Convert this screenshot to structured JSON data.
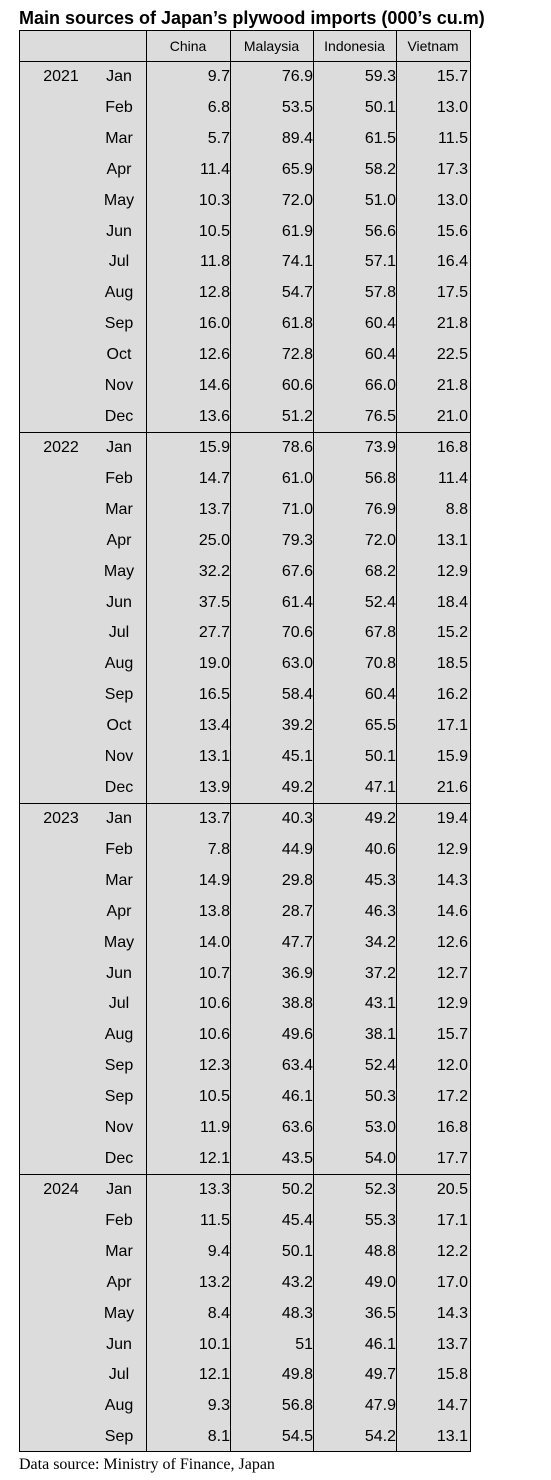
{
  "title": "Main sources of Japan’s plywood imports (000’s cu.m)",
  "columns": [
    "China",
    "Malaysia",
    "Indonesia",
    "Vietnam"
  ],
  "years": [
    {
      "year": "2021",
      "rows": [
        {
          "month": "Jan",
          "values": [
            "9.7",
            "76.9",
            "59.3",
            "15.7"
          ]
        },
        {
          "month": "Feb",
          "values": [
            "6.8",
            "53.5",
            "50.1",
            "13.0"
          ]
        },
        {
          "month": "Mar",
          "values": [
            "5.7",
            "89.4",
            "61.5",
            "11.5"
          ]
        },
        {
          "month": "Apr",
          "values": [
            "11.4",
            "65.9",
            "58.2",
            "17.3"
          ]
        },
        {
          "month": "May",
          "values": [
            "10.3",
            "72.0",
            "51.0",
            "13.0"
          ]
        },
        {
          "month": "Jun",
          "values": [
            "10.5",
            "61.9",
            "56.6",
            "15.6"
          ]
        },
        {
          "month": "Jul",
          "values": [
            "11.8",
            "74.1",
            "57.1",
            "16.4"
          ]
        },
        {
          "month": "Aug",
          "values": [
            "12.8",
            "54.7",
            "57.8",
            "17.5"
          ]
        },
        {
          "month": "Sep",
          "values": [
            "16.0",
            "61.8",
            "60.4",
            "21.8"
          ]
        },
        {
          "month": "Oct",
          "values": [
            "12.6",
            "72.8",
            "60.4",
            "22.5"
          ]
        },
        {
          "month": "Nov",
          "values": [
            "14.6",
            "60.6",
            "66.0",
            "21.8"
          ]
        },
        {
          "month": "Dec",
          "values": [
            "13.6",
            "51.2",
            "76.5",
            "21.0"
          ]
        }
      ]
    },
    {
      "year": "2022",
      "rows": [
        {
          "month": "Jan",
          "values": [
            "15.9",
            "78.6",
            "73.9",
            "16.8"
          ]
        },
        {
          "month": "Feb",
          "values": [
            "14.7",
            "61.0",
            "56.8",
            "11.4"
          ]
        },
        {
          "month": "Mar",
          "values": [
            "13.7",
            "71.0",
            "76.9",
            "8.8"
          ]
        },
        {
          "month": "Apr",
          "values": [
            "25.0",
            "79.3",
            "72.0",
            "13.1"
          ]
        },
        {
          "month": "May",
          "values": [
            "32.2",
            "67.6",
            "68.2",
            "12.9"
          ]
        },
        {
          "month": "Jun",
          "values": [
            "37.5",
            "61.4",
            "52.4",
            "18.4"
          ]
        },
        {
          "month": "Jul",
          "values": [
            "27.7",
            "70.6",
            "67.8",
            "15.2"
          ]
        },
        {
          "month": "Aug",
          "values": [
            "19.0",
            "63.0",
            "70.8",
            "18.5"
          ]
        },
        {
          "month": "Sep",
          "values": [
            "16.5",
            "58.4",
            "60.4",
            "16.2"
          ]
        },
        {
          "month": "Oct",
          "values": [
            "13.4",
            "39.2",
            "65.5",
            "17.1"
          ]
        },
        {
          "month": "Nov",
          "values": [
            "13.1",
            "45.1",
            "50.1",
            "15.9"
          ]
        },
        {
          "month": "Dec",
          "values": [
            "13.9",
            "49.2",
            "47.1",
            "21.6"
          ]
        }
      ]
    },
    {
      "year": "2023",
      "rows": [
        {
          "month": "Jan",
          "values": [
            "13.7",
            "40.3",
            "49.2",
            "19.4"
          ]
        },
        {
          "month": "Feb",
          "values": [
            "7.8",
            "44.9",
            "40.6",
            "12.9"
          ]
        },
        {
          "month": "Mar",
          "values": [
            "14.9",
            "29.8",
            "45.3",
            "14.3"
          ]
        },
        {
          "month": "Apr",
          "values": [
            "13.8",
            "28.7",
            "46.3",
            "14.6"
          ]
        },
        {
          "month": "May",
          "values": [
            "14.0",
            "47.7",
            "34.2",
            "12.6"
          ]
        },
        {
          "month": "Jun",
          "values": [
            "10.7",
            "36.9",
            "37.2",
            "12.7"
          ]
        },
        {
          "month": "Jul",
          "values": [
            "10.6",
            "38.8",
            "43.1",
            "12.9"
          ]
        },
        {
          "month": "Aug",
          "values": [
            "10.6",
            "49.6",
            "38.1",
            "15.7"
          ]
        },
        {
          "month": "Sep",
          "values": [
            "12.3",
            "63.4",
            "52.4",
            "12.0"
          ]
        },
        {
          "month": "Sep",
          "values": [
            "10.5",
            "46.1",
            "50.3",
            "17.2"
          ]
        },
        {
          "month": "Nov",
          "values": [
            "11.9",
            "63.6",
            "53.0",
            "16.8"
          ]
        },
        {
          "month": "Dec",
          "values": [
            "12.1",
            "43.5",
            "54.0",
            "17.7"
          ]
        }
      ]
    },
    {
      "year": "2024",
      "rows": [
        {
          "month": "Jan",
          "values": [
            "13.3",
            "50.2",
            "52.3",
            "20.5"
          ]
        },
        {
          "month": "Feb",
          "values": [
            "11.5",
            "45.4",
            "55.3",
            "17.1"
          ]
        },
        {
          "month": "Mar",
          "values": [
            "9.4",
            "50.1",
            "48.8",
            "12.2"
          ]
        },
        {
          "month": "Apr",
          "values": [
            "13.2",
            "43.2",
            "49.0",
            "17.0"
          ]
        },
        {
          "month": "May",
          "values": [
            "8.4",
            "48.3",
            "36.5",
            "14.3"
          ]
        },
        {
          "month": "Jun",
          "values": [
            "10.1",
            "51",
            "46.1",
            "13.7"
          ]
        },
        {
          "month": "Jul",
          "values": [
            "12.1",
            "49.8",
            "49.7",
            "15.8"
          ]
        },
        {
          "month": "Aug",
          "values": [
            "9.3",
            "56.8",
            "47.9",
            "14.7"
          ]
        },
        {
          "month": "Sep",
          "values": [
            "8.1",
            "54.5",
            "54.2",
            "13.1"
          ]
        }
      ]
    }
  ],
  "source": "Data source: Ministry of Finance, Japan"
}
